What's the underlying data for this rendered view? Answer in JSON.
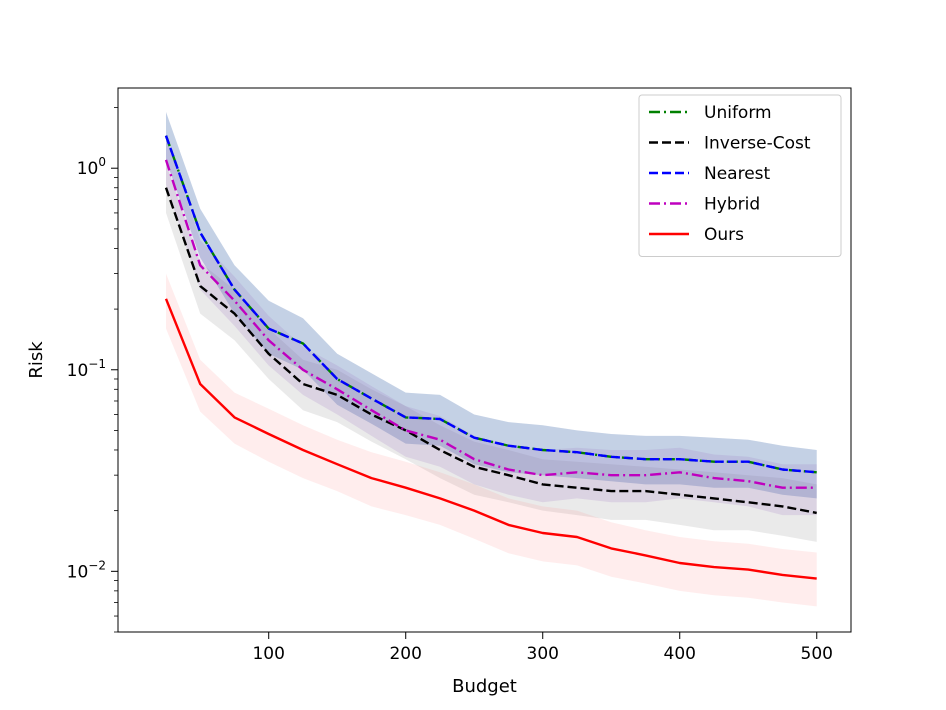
{
  "chart_data": {
    "type": "line",
    "xlabel": "Budget",
    "ylabel": "Risk",
    "xlim": [
      -10,
      525
    ],
    "ylim": [
      0.005,
      2.5
    ],
    "y_scale": "log",
    "x_ticks": [
      100,
      200,
      300,
      400,
      500
    ],
    "x_tick_labels": [
      "100",
      "200",
      "300",
      "400",
      "500"
    ],
    "y_major_ticks": [
      0.01,
      0.1,
      1
    ],
    "y_tick_labels": [
      {
        "base": "10",
        "exp": "−2"
      },
      {
        "base": "10",
        "exp": "−1"
      },
      {
        "base": "10",
        "exp": "0"
      }
    ],
    "grid": false,
    "legend_position": "top-right",
    "x": [
      25,
      50,
      75,
      100,
      125,
      150,
      175,
      200,
      225,
      250,
      275,
      300,
      325,
      350,
      375,
      400,
      425,
      450,
      475,
      500
    ],
    "series": [
      {
        "name": "Uniform",
        "color": "#008000",
        "style": "dashdot",
        "band_color": "#4c72b0",
        "values": [
          1.45,
          0.48,
          0.25,
          0.16,
          0.135,
          0.09,
          0.072,
          0.058,
          0.057,
          0.046,
          0.042,
          0.04,
          0.039,
          0.037,
          0.036,
          0.036,
          0.035,
          0.035,
          0.032,
          0.031
        ],
        "band_upper": [
          1.9,
          0.63,
          0.33,
          0.22,
          0.18,
          0.12,
          0.096,
          0.077,
          0.075,
          0.06,
          0.055,
          0.053,
          0.05,
          0.048,
          0.047,
          0.047,
          0.046,
          0.045,
          0.042,
          0.04
        ],
        "band_lower": [
          1.1,
          0.36,
          0.19,
          0.12,
          0.1,
          0.067,
          0.054,
          0.043,
          0.042,
          0.034,
          0.031,
          0.03,
          0.029,
          0.028,
          0.027,
          0.027,
          0.026,
          0.026,
          0.024,
          0.023
        ]
      },
      {
        "name": "Inverse-Cost",
        "color": "#000000",
        "style": "dashed",
        "band_color": "#888888",
        "values": [
          0.8,
          0.26,
          0.19,
          0.12,
          0.085,
          0.075,
          0.06,
          0.05,
          0.04,
          0.033,
          0.03,
          0.027,
          0.026,
          0.025,
          0.025,
          0.024,
          0.023,
          0.022,
          0.021,
          0.0195
        ],
        "band_upper": [
          1.05,
          0.34,
          0.25,
          0.16,
          0.112,
          0.1,
          0.08,
          0.066,
          0.053,
          0.044,
          0.04,
          0.036,
          0.035,
          0.034,
          0.033,
          0.032,
          0.031,
          0.03,
          0.029,
          0.027
        ],
        "band_lower": [
          0.6,
          0.19,
          0.14,
          0.09,
          0.063,
          0.055,
          0.044,
          0.036,
          0.029,
          0.024,
          0.022,
          0.02,
          0.019,
          0.018,
          0.018,
          0.017,
          0.016,
          0.016,
          0.015,
          0.014
        ]
      },
      {
        "name": "Nearest",
        "color": "#0000ff",
        "style": "dashed",
        "band_color": "#4c72b0",
        "values": [
          1.45,
          0.48,
          0.25,
          0.16,
          0.135,
          0.09,
          0.072,
          0.058,
          0.057,
          0.046,
          0.042,
          0.04,
          0.039,
          0.037,
          0.036,
          0.036,
          0.035,
          0.035,
          0.032,
          0.031
        ],
        "band_upper": [
          1.9,
          0.63,
          0.33,
          0.22,
          0.18,
          0.12,
          0.096,
          0.077,
          0.075,
          0.06,
          0.055,
          0.053,
          0.05,
          0.048,
          0.047,
          0.047,
          0.046,
          0.045,
          0.042,
          0.04
        ],
        "band_lower": [
          1.1,
          0.36,
          0.19,
          0.12,
          0.1,
          0.067,
          0.054,
          0.043,
          0.042,
          0.034,
          0.031,
          0.03,
          0.029,
          0.028,
          0.027,
          0.027,
          0.026,
          0.026,
          0.024,
          0.023
        ]
      },
      {
        "name": "Hybrid",
        "color": "#bf00bf",
        "style": "dashdot",
        "band_color": "#9b6fc4",
        "values": [
          1.1,
          0.33,
          0.22,
          0.14,
          0.1,
          0.08,
          0.063,
          0.05,
          0.045,
          0.036,
          0.032,
          0.03,
          0.031,
          0.03,
          0.03,
          0.031,
          0.029,
          0.028,
          0.026,
          0.026
        ],
        "band_upper": [
          1.45,
          0.44,
          0.29,
          0.185,
          0.13,
          0.105,
          0.083,
          0.066,
          0.059,
          0.047,
          0.042,
          0.04,
          0.041,
          0.04,
          0.04,
          0.041,
          0.038,
          0.037,
          0.034,
          0.034
        ],
        "band_lower": [
          0.83,
          0.25,
          0.165,
          0.105,
          0.075,
          0.06,
          0.047,
          0.037,
          0.033,
          0.027,
          0.024,
          0.022,
          0.023,
          0.022,
          0.022,
          0.023,
          0.022,
          0.021,
          0.019,
          0.019
        ]
      },
      {
        "name": "Ours",
        "color": "#ff0000",
        "style": "solid",
        "band_color": "#ff9a9a",
        "values": [
          0.225,
          0.085,
          0.058,
          0.048,
          0.04,
          0.034,
          0.029,
          0.026,
          0.023,
          0.02,
          0.017,
          0.0155,
          0.0148,
          0.013,
          0.012,
          0.011,
          0.0105,
          0.0102,
          0.0096,
          0.0092
        ],
        "band_upper": [
          0.3,
          0.112,
          0.077,
          0.064,
          0.053,
          0.045,
          0.039,
          0.035,
          0.031,
          0.027,
          0.023,
          0.021,
          0.02,
          0.0175,
          0.016,
          0.0148,
          0.0141,
          0.0137,
          0.0129,
          0.0124
        ],
        "band_lower": [
          0.16,
          0.062,
          0.043,
          0.035,
          0.029,
          0.025,
          0.021,
          0.019,
          0.017,
          0.0145,
          0.0123,
          0.0112,
          0.0107,
          0.0094,
          0.0087,
          0.008,
          0.0076,
          0.0074,
          0.007,
          0.0067
        ]
      }
    ]
  }
}
